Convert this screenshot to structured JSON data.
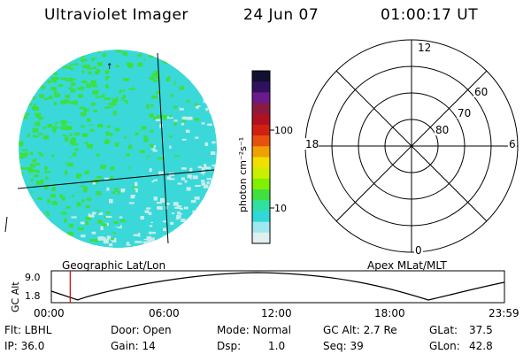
{
  "header": {
    "instrument": "Ultraviolet Imager",
    "date": "24 Jun 07",
    "time": "01:00:17 UT"
  },
  "colorbar": {
    "label": "photon cm⁻²s⁻¹",
    "ticks": [
      "100",
      "10"
    ],
    "colors": [
      "#101030",
      "#301060",
      "#6a1a8a",
      "#8a1a40",
      "#b01020",
      "#d02010",
      "#e85010",
      "#f0a000",
      "#f0e000",
      "#c8f000",
      "#80f000",
      "#40e040",
      "#30e0a0",
      "#30d8d8",
      "#a0e8f0",
      "#e0f0f0"
    ]
  },
  "left_panel": {
    "title": "Geographic Lat/Lon",
    "colors": {
      "green": "#3de03d",
      "cyan": "#3ad8d8",
      "light": "#c8ecec"
    }
  },
  "right_panel": {
    "title": "Apex MLat/MLT",
    "mlt_labels": {
      "top": "12",
      "bottom": "0",
      "left": "18",
      "right": "6"
    },
    "mlat_labels": [
      "60",
      "70",
      "80"
    ]
  },
  "altitude_plot": {
    "ylabel": "GC Alt",
    "yticks": [
      "9.0",
      "1.8"
    ],
    "xticks": [
      "00:00",
      "06:00",
      "12:00",
      "18:00",
      "23:59"
    ],
    "current_marker_hours": 1.0,
    "marker_color": "#cc0000"
  },
  "info": {
    "filter": "Flt: LBHL",
    "ip": "IP: 36.0",
    "door": "Door: Open",
    "gain": "Gain: 14",
    "mode": "Mode: Normal",
    "dsp_label": "Dsp:",
    "dsp_value": "1.0",
    "gc_alt": "GC Alt: 2.7 Re",
    "seq": "Seq: 39",
    "glat_label": "GLat:",
    "glat_value": "37.5",
    "glon_label": "GLon:",
    "glon_value": "42.8"
  }
}
